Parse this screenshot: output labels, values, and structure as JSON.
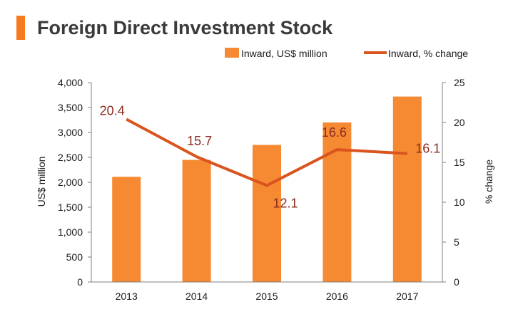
{
  "colors": {
    "accent": "#f47b20",
    "bar": "#f58a33",
    "line": "#d9541e",
    "label": "#8b2a1f",
    "axis": "#7f7f7f",
    "text": "#1a1a1a"
  },
  "chart_data": {
    "type": "bar",
    "title": "Foreign Direct Investment Stock",
    "categories": [
      "2013",
      "2014",
      "2015",
      "2016",
      "2017"
    ],
    "series": [
      {
        "name": "Inward, US$ million",
        "type": "bar",
        "axis": "left",
        "values": [
          2110,
          2450,
          2750,
          3200,
          3720
        ]
      },
      {
        "name": "Inward, % change",
        "type": "line",
        "axis": "right",
        "values": [
          20.4,
          15.7,
          12.1,
          16.6,
          16.1
        ],
        "labels": [
          "20.4",
          "15.7",
          "12.1",
          "16.6",
          "16.1"
        ]
      }
    ],
    "ylabel": "US$ million",
    "ylim": [
      0,
      4000
    ],
    "yticks": [
      "0",
      "500",
      "1,000",
      "1,500",
      "2,000",
      "2,500",
      "3,000",
      "3,500",
      "4,000"
    ],
    "y2label": "% change",
    "y2lim": [
      0,
      25
    ],
    "y2ticks": [
      "0",
      "5",
      "10",
      "15",
      "20",
      "25"
    ],
    "xlabel": "",
    "grid": false,
    "legend": "top-right"
  }
}
